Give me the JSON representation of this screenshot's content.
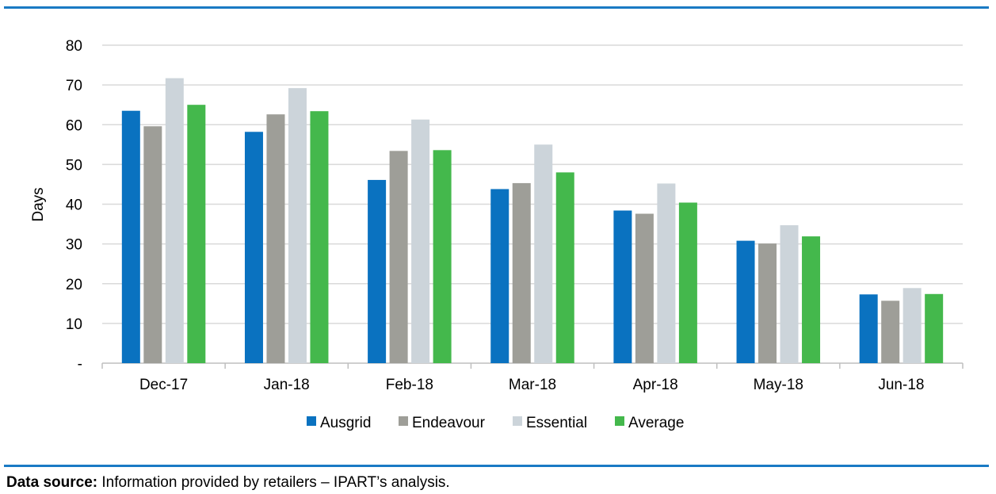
{
  "chart_data": {
    "type": "bar",
    "title": "",
    "xlabel": "",
    "ylabel": "Days",
    "ylim": [
      0,
      80
    ],
    "yticks": [
      "-",
      "10",
      "20",
      "30",
      "40",
      "50",
      "60",
      "70",
      "80"
    ],
    "grid": true,
    "legend_position": "bottom-center",
    "categories": [
      "Dec-17",
      "Jan-18",
      "Feb-18",
      "Mar-18",
      "Apr-18",
      "May-18",
      "Jun-18"
    ],
    "series": [
      {
        "name": "Ausgrid",
        "color": "#0a72c0",
        "values": [
          63.5,
          58.2,
          46.1,
          43.8,
          38.4,
          30.8,
          17.3
        ]
      },
      {
        "name": "Endeavour",
        "color": "#9e9e98",
        "values": [
          59.6,
          62.6,
          53.4,
          45.3,
          37.6,
          30.1,
          15.7
        ]
      },
      {
        "name": "Essential",
        "color": "#ccd4da",
        "values": [
          71.7,
          69.2,
          61.3,
          55.0,
          45.2,
          34.7,
          18.9
        ]
      },
      {
        "name": "Average",
        "color": "#44b84c",
        "values": [
          65.0,
          63.4,
          53.6,
          48.0,
          40.4,
          31.9,
          17.4
        ]
      }
    ]
  },
  "footer": {
    "source_label": "Data source:",
    "source_text": " Information provided by retailers – IPART’s analysis."
  }
}
